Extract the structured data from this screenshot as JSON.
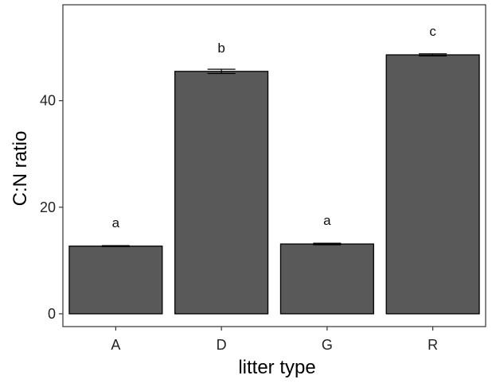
{
  "chart_data": {
    "type": "bar",
    "categories": [
      "A",
      "D",
      "G",
      "R"
    ],
    "values": [
      12.7,
      45.5,
      13.1,
      48.6
    ],
    "errors": [
      0.1,
      0.4,
      0.15,
      0.2
    ],
    "significance_labels": [
      "a",
      "b",
      "a",
      "c"
    ],
    "xlabel": "litter type",
    "ylabel": "C:N ratio",
    "ylim": [
      -2.4,
      58
    ],
    "yticks": [
      0,
      20,
      40
    ],
    "grid": false,
    "bar_color": "#595959",
    "bar_outline": "#000000"
  }
}
